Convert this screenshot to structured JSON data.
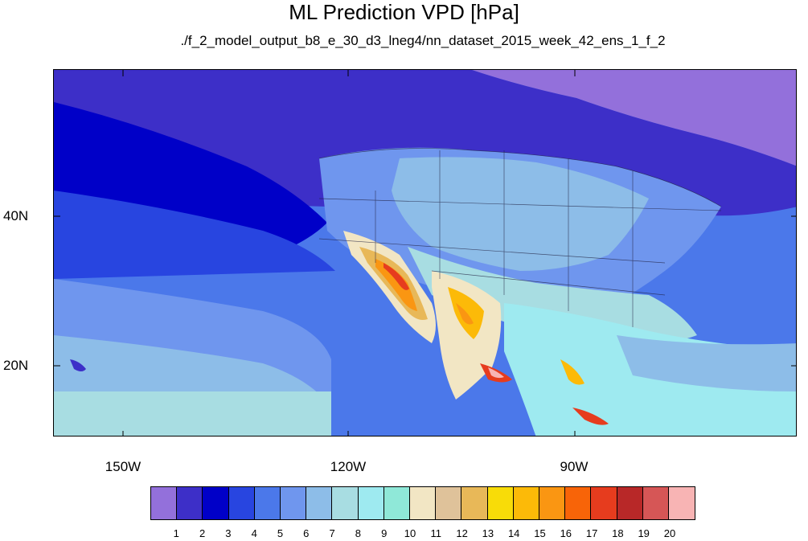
{
  "title": "ML Prediction VPD [hPa]",
  "subtitle": "./f_2_model_output_b8_e_30_d3_lneg4/nn_dataset_2015_week_42_ens_1_f_2",
  "axes": {
    "lon_labels": [
      "150W",
      "120W",
      "90W"
    ],
    "lat_labels": [
      "40N",
      "20N"
    ]
  },
  "colorbar": {
    "colors": [
      "#9370db",
      "#3d2fc8",
      "#0000c8",
      "#2845e0",
      "#4b78ea",
      "#6f96ee",
      "#8dbde8",
      "#a8dde2",
      "#9eeaf0",
      "#8fe8d8",
      "#f2e6c4",
      "#dfc29a",
      "#e8b858",
      "#f8dc08",
      "#fcba08",
      "#fa9612",
      "#f86408",
      "#e63c1e",
      "#b82828",
      "#d65656",
      "#f8b4b4"
    ],
    "labels": [
      "1",
      "2",
      "3",
      "4",
      "5",
      "6",
      "7",
      "8",
      "9",
      "10",
      "11",
      "12",
      "13",
      "14",
      "15",
      "16",
      "17",
      "18",
      "19",
      "20"
    ]
  }
}
